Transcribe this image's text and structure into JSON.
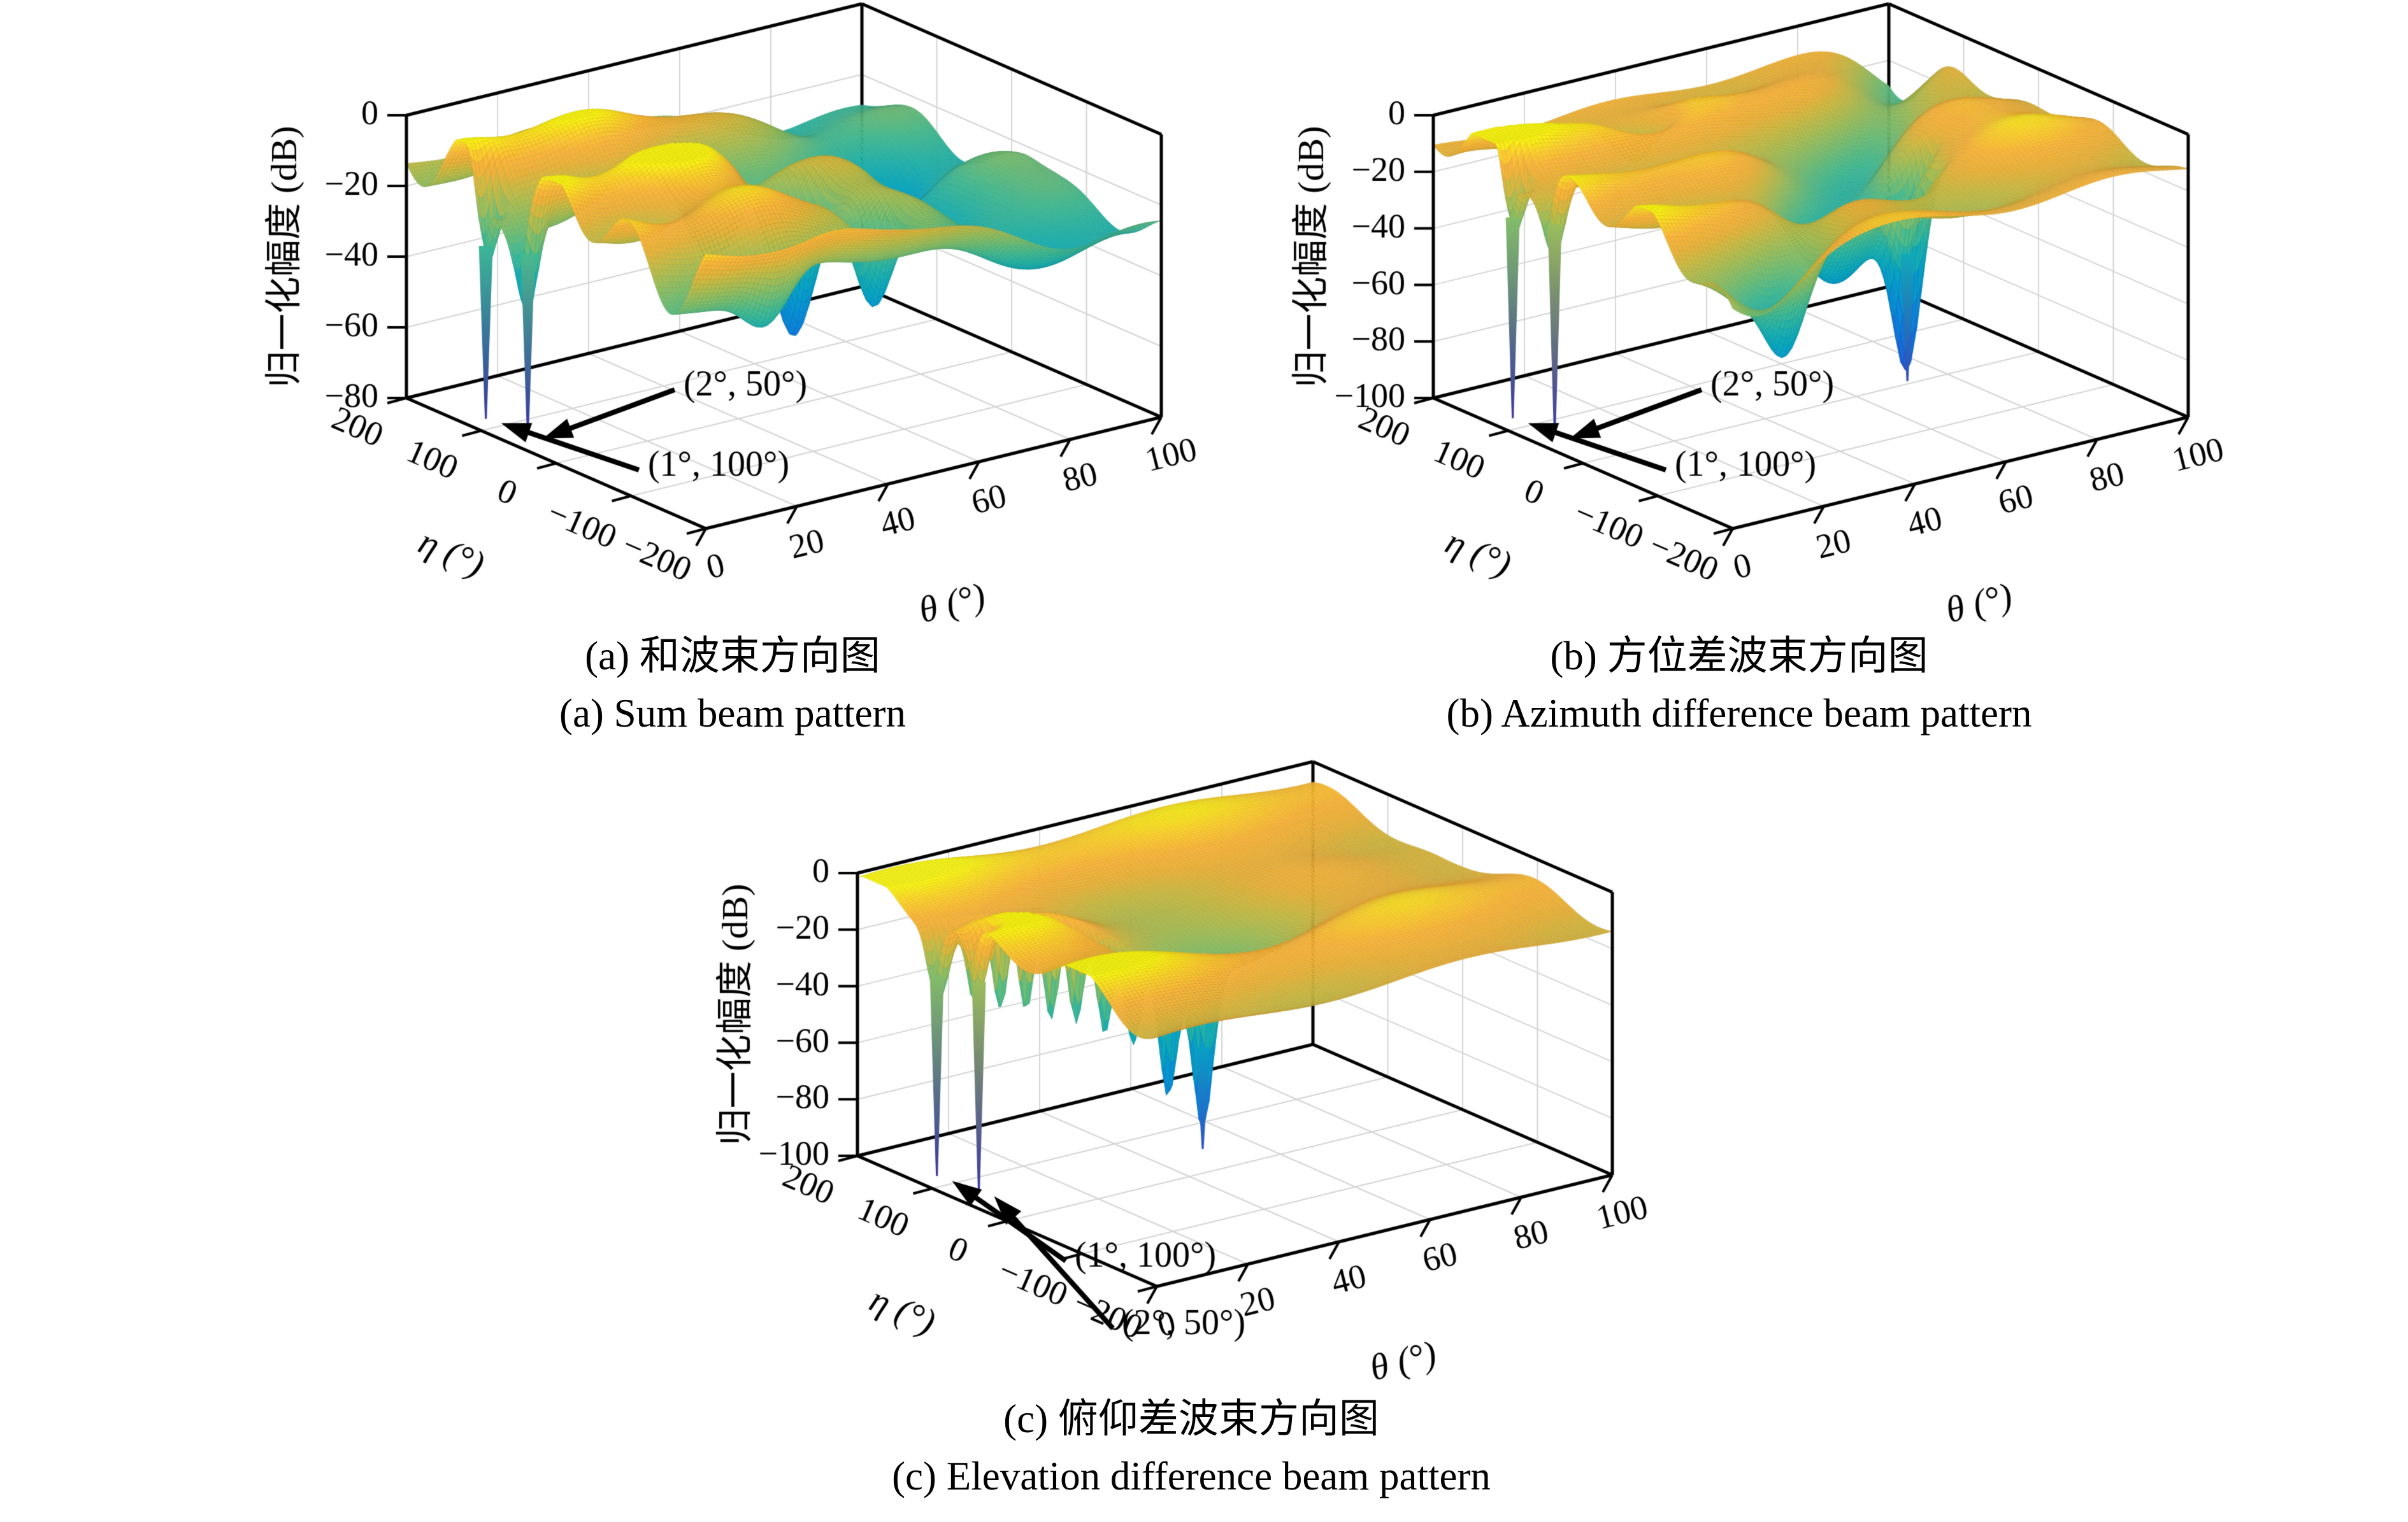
{
  "page": {
    "background": "#ffffff"
  },
  "colormap": {
    "name": "parula",
    "stops": [
      [
        0.0,
        "#352a87"
      ],
      [
        0.07,
        "#3a41b0"
      ],
      [
        0.14,
        "#2c55ca"
      ],
      [
        0.22,
        "#1967d6"
      ],
      [
        0.3,
        "#1179da"
      ],
      [
        0.38,
        "#0a8ad6"
      ],
      [
        0.46,
        "#0899cc"
      ],
      [
        0.53,
        "#0aa6bf"
      ],
      [
        0.6,
        "#22b1aa"
      ],
      [
        0.67,
        "#46ba90"
      ],
      [
        0.73,
        "#74bd72"
      ],
      [
        0.79,
        "#a3bd56"
      ],
      [
        0.84,
        "#c9ba43"
      ],
      [
        0.88,
        "#e9b23a"
      ],
      [
        0.92,
        "#f9b43a"
      ],
      [
        0.955,
        "#fbcd2d"
      ],
      [
        1.0,
        "#f8fa0f"
      ]
    ]
  },
  "chart_data": [
    {
      "id": "a",
      "type": "heatmap",
      "projection": "3d-surface",
      "colormap": "parula",
      "caption_cn": "(a) 和波束方向图",
      "caption_en": "(a) Sum beam pattern",
      "xlabel": "θ (°)",
      "ylabel": "η (°)",
      "zlabel": "归一化幅度 (dB)",
      "x_ticks": [
        0,
        20,
        40,
        60,
        80,
        100
      ],
      "y_ticks": [
        200,
        100,
        0,
        -100,
        -200
      ],
      "z_ticks": [
        0,
        -20,
        -40,
        -60,
        -80
      ],
      "xlim": [
        0,
        100
      ],
      "ylim": [
        -200,
        200
      ],
      "zlim": [
        -80,
        0
      ],
      "grid": true,
      "nulls": [
        {
          "label": "(2°, 50°)",
          "theta_deg": 2,
          "eta_deg": 50
        },
        {
          "label": "(1°, 100°)",
          "theta_deg": 1,
          "eta_deg": 100
        }
      ],
      "annotations": [
        {
          "text": "(2°, 50°)",
          "cx": 1170,
          "cy": 676,
          "theta": 2,
          "eta": 50
        },
        {
          "text": "(1°, 100°)",
          "cx": 1128,
          "cy": 802,
          "theta": 1,
          "eta": 100
        }
      ],
      "surface": {
        "base": -13,
        "eta_waves": [
          [
            9,
            110,
            10,
            55
          ],
          [
            4,
            190,
            -40,
            9999
          ]
        ],
        "theta_waves": [
          [
            5,
            34,
            -6,
            -20,
            160
          ]
        ],
        "lobes": [
          [
            8,
            18,
            22,
            15,
            120
          ]
        ],
        "slope": [
          -16,
          40,
          85
        ],
        "diag": [],
        "dips": [
          [
            40,
            47,
            5.5,
            -30,
            26
          ],
          [
            30,
            54,
            5,
            -95,
            22
          ],
          [
            20,
            44,
            6,
            60,
            30
          ],
          [
            12,
            20,
            6,
            -160,
            25
          ],
          [
            10,
            75,
            7,
            -10,
            50
          ],
          [
            8,
            85,
            6,
            80,
            40
          ],
          [
            25,
            1.5,
            2.5,
            100,
            12
          ],
          [
            25,
            2,
            2.5,
            50,
            12
          ]
        ],
        "clamp": [
          -78,
          -0.5
        ]
      },
      "needles": [
        [
          1,
          100,
          -28,
          -77
        ],
        [
          2,
          50,
          -26,
          -77
        ]
      ]
    },
    {
      "id": "b",
      "type": "heatmap",
      "projection": "3d-surface",
      "colormap": "parula",
      "caption_cn": "(b) 方位差波束方向图",
      "caption_en": "(b) Azimuth difference beam pattern",
      "xlabel": "θ (°)",
      "ylabel": "η (°)",
      "zlabel": "归一化幅度 (dB)",
      "x_ticks": [
        0,
        20,
        40,
        60,
        80,
        100
      ],
      "y_ticks": [
        200,
        100,
        0,
        -100,
        -200
      ],
      "z_ticks": [
        0,
        -20,
        -40,
        -60,
        -80,
        -100
      ],
      "xlim": [
        0,
        100
      ],
      "ylim": [
        -200,
        200
      ],
      "zlim": [
        -100,
        0
      ],
      "grid": true,
      "nulls": [
        {
          "label": "(2°, 50°)",
          "theta_deg": 2,
          "eta_deg": 50
        },
        {
          "label": "(1°, 100°)",
          "theta_deg": 1,
          "eta_deg": 100
        }
      ],
      "annotations": [
        {
          "text": "(2°, 50°)",
          "cx": 1170,
          "cy": 676,
          "theta": 2,
          "eta": 50
        },
        {
          "text": "(1°, 100°)",
          "cx": 1128,
          "cy": 802,
          "theta": 1,
          "eta": 100
        }
      ],
      "surface": {
        "base": -11,
        "eta_waves": [
          [
            7,
            105,
            20,
            75
          ],
          [
            3,
            210,
            -60,
            9999
          ]
        ],
        "theta_waves": [
          [
            5,
            46,
            -8,
            -30,
            200
          ]
        ],
        "lobes": [
          [
            8,
            12,
            18,
            60,
            70
          ],
          [
            6,
            28,
            22,
            -120,
            70
          ],
          [
            6,
            5,
            10,
            150,
            40
          ]
        ],
        "slope": null,
        "diag": [
          [
            20,
            1,
            -0.25,
            -55,
            12
          ]
        ],
        "dips": [
          [
            22,
            52,
            14,
            -40,
            60
          ],
          [
            60,
            63,
            4,
            -50,
            13
          ],
          [
            28,
            69,
            3.5,
            -18,
            9
          ],
          [
            24,
            57,
            3.5,
            -80,
            9
          ],
          [
            20,
            34,
            7,
            135,
            22
          ],
          [
            18,
            20,
            5,
            -150,
            18
          ],
          [
            25,
            1.5,
            2.5,
            100,
            12
          ],
          [
            25,
            2,
            2.5,
            50,
            12
          ]
        ],
        "clamp": [
          -98,
          -0.5
        ]
      },
      "needles": [
        [
          1,
          100,
          -25,
          -96
        ],
        [
          2,
          50,
          -22,
          -96
        ],
        [
          63,
          -50,
          -45,
          -90
        ]
      ]
    },
    {
      "id": "c",
      "type": "heatmap",
      "projection": "3d-surface",
      "colormap": "parula",
      "caption_cn": "(c) 俯仰差波束方向图",
      "caption_en": "(c) Elevation difference beam pattern",
      "xlabel": "θ (°)",
      "ylabel": "η (°)",
      "zlabel": "归一化幅度 (dB)",
      "x_ticks": [
        0,
        20,
        40,
        60,
        80,
        100
      ],
      "y_ticks": [
        200,
        100,
        0,
        -100,
        -200
      ],
      "z_ticks": [
        0,
        -20,
        -40,
        -60,
        -80,
        -100
      ],
      "xlim": [
        0,
        100
      ],
      "ylim": [
        -200,
        200
      ],
      "zlim": [
        -100,
        0
      ],
      "grid": true,
      "nulls": [
        {
          "label": "(1°, 100°)",
          "theta_deg": 1,
          "eta_deg": 100
        },
        {
          "label": "(2°, 50°)",
          "theta_deg": 2,
          "eta_deg": 50
        }
      ],
      "annotations": [
        {
          "text": "(1°, 100°)",
          "cx": 1090,
          "cy": 854,
          "theta": 1,
          "eta": 100
        },
        {
          "text": "(2°, 50°)",
          "cx": 1150,
          "cy": 960,
          "theta": 2,
          "eta": 50
        }
      ],
      "surface": {
        "base": -9,
        "eta_waves": [
          [
            5,
            140,
            40,
            90
          ],
          [
            3,
            260,
            -80,
            9999
          ]
        ],
        "theta_waves": [
          [
            4,
            60,
            8,
            20,
            250
          ]
        ],
        "lobes": [
          [
            6,
            15,
            25,
            40,
            100
          ]
        ],
        "slope": null,
        "diag": [],
        "dips": [
          [
            14,
            45,
            25,
            0,
            85
          ],
          [
            30,
            8,
            2.2,
            92,
            7
          ],
          [
            34,
            11,
            2.2,
            76,
            7
          ],
          [
            36,
            14,
            2.2,
            60,
            7
          ],
          [
            38,
            17,
            2.2,
            45,
            7
          ],
          [
            36,
            20,
            2.2,
            30,
            7
          ],
          [
            34,
            24,
            2.2,
            16,
            7
          ],
          [
            32,
            28,
            2.2,
            2,
            7
          ],
          [
            45,
            33,
            2.5,
            -14,
            8
          ],
          [
            55,
            38,
            2.8,
            -30,
            9
          ],
          [
            25,
            1.5,
            2.5,
            100,
            12
          ],
          [
            25,
            2,
            2.5,
            50,
            12
          ]
        ],
        "clamp": [
          -98,
          -0.5
        ]
      },
      "needles": [
        [
          1,
          100,
          -25,
          -96
        ],
        [
          2,
          50,
          -22,
          -96
        ],
        [
          38,
          -30,
          -50,
          -86
        ]
      ]
    }
  ]
}
